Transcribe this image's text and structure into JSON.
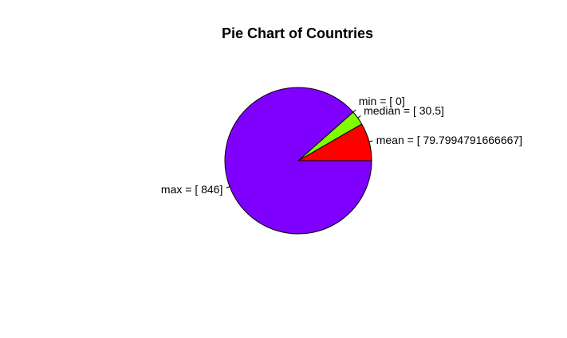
{
  "chart_data": {
    "type": "pie",
    "title": "Pie Chart of Countries",
    "slices": [
      {
        "label": "mean = [ 79.7994791666667]",
        "value": 79.7994791666667,
        "color": "#FF0000"
      },
      {
        "label": "median = [ 30.5]",
        "value": 30.5,
        "color": "#80FF00"
      },
      {
        "label": "min = [ 0]",
        "value": 0,
        "color": "#00FFFF"
      },
      {
        "label": "max = [ 846]",
        "value": 846,
        "color": "#8000FF"
      }
    ],
    "start_angle_deg": 0,
    "direction": "counterclockwise",
    "border_color": "#000000"
  }
}
